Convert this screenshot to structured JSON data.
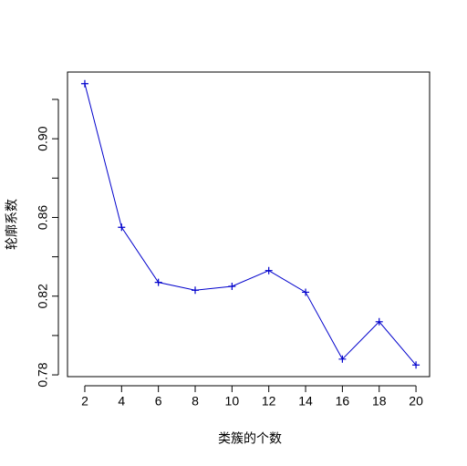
{
  "chart_data": {
    "type": "line",
    "x_label": "类簇的个数",
    "y_label": "轮廓系数",
    "x": [
      2,
      4,
      6,
      8,
      10,
      12,
      14,
      16,
      18,
      20
    ],
    "values": [
      0.928,
      0.855,
      0.827,
      0.823,
      0.825,
      0.833,
      0.822,
      0.788,
      0.807,
      0.785
    ],
    "color": "#0000cc",
    "marker": "+",
    "xlim": [
      1.06,
      20.74
    ],
    "ylim": [
      0.7791,
      0.9339
    ],
    "xticks": [
      2,
      4,
      6,
      8,
      10,
      12,
      14,
      16,
      18,
      20
    ],
    "yticks": [
      0.78,
      0.82,
      0.86,
      {
        "value": 0.9,
        "label": "0.90"
      }
    ],
    "yminorticks": [
      0.8,
      0.84,
      0.88,
      0.92
    ]
  }
}
